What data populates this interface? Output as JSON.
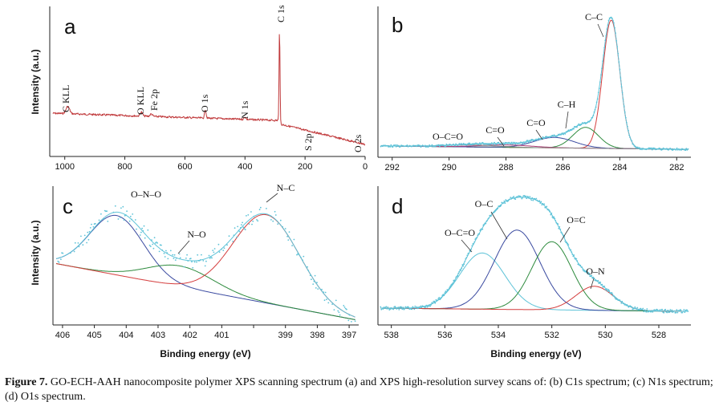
{
  "chart_data": [
    {
      "panel": "a",
      "type": "line",
      "ylabel": "Intensity (a.u.)",
      "xlim": [
        1050,
        0
      ],
      "xticks": [
        1000,
        800,
        600,
        400,
        200,
        0
      ],
      "color": "#c0393b",
      "peaks": [
        {
          "label": "C KLL",
          "x": 990
        },
        {
          "label": "O KLL",
          "x": 745
        },
        {
          "label": "Fe 2p",
          "x": 710
        },
        {
          "label": "O 1s",
          "x": 532
        },
        {
          "label": "N 1s",
          "x": 400
        },
        {
          "label": "C 1s",
          "x": 285
        },
        {
          "label": "S 2p",
          "x": 165
        },
        {
          "label": "O 2s",
          "x": 23
        }
      ]
    },
    {
      "panel": "b",
      "type": "line",
      "xlim": [
        292.5,
        281.5
      ],
      "xticks": [
        292,
        290,
        288,
        286,
        284,
        282
      ],
      "components": [
        {
          "label": "C–C",
          "center": 284.3,
          "color": "#d43c3c"
        },
        {
          "label": "C–H",
          "center": 285.2,
          "color": "#2e8b3e"
        },
        {
          "label": "C=O",
          "center": 286.3,
          "color": "#3a4aa0"
        },
        {
          "label": "C=O",
          "center": 288.0,
          "color": "#b0407a"
        },
        {
          "label": "O–C=O",
          "center": 289.2,
          "color": "#888888"
        }
      ],
      "envelope_color": "#5fc3d8"
    },
    {
      "panel": "c",
      "type": "line",
      "ylabel": "Intensity (a.u.)",
      "xlabel": "Binding energy (eV)",
      "xlim": [
        406.3,
        396.7
      ],
      "xticks": [
        406,
        405,
        404,
        403,
        402,
        401,
        400,
        399,
        398,
        397
      ],
      "xtick_labels": [
        "406",
        "405",
        "404",
        "403",
        "402",
        "401",
        "",
        "399",
        "398",
        "397"
      ],
      "components": [
        {
          "label": "O–N–O",
          "center": 404.3,
          "color": "#3a4aa0"
        },
        {
          "label": "N–O",
          "center": 402.3,
          "color": "#2e8b3e"
        },
        {
          "label": "N–C",
          "center": 399.6,
          "color": "#d43c3c"
        }
      ],
      "envelope_color": "#5fc3d8"
    },
    {
      "panel": "d",
      "type": "line",
      "xlabel": "Binding energy (eV)",
      "xlim": [
        538.5,
        526.8
      ],
      "xticks": [
        538,
        536,
        534,
        532,
        530,
        528
      ],
      "components": [
        {
          "label": "O–C=O",
          "center": 534.6,
          "color": "#5fc3d8"
        },
        {
          "label": "O–C",
          "center": 533.3,
          "color": "#3a4aa0"
        },
        {
          "label": "O=C",
          "center": 532.0,
          "color": "#2e8b3e"
        },
        {
          "label": "O–N",
          "center": 530.4,
          "color": "#d43c3c"
        }
      ],
      "envelope_color": "#5fc3d8"
    }
  ],
  "caption": {
    "figure_label": "Figure 7.",
    "text": " GO-ECH-AAH nanocomposite polymer XPS scanning spectrum (a) and XPS high-resolution survey scans of: (b) C1s spectrum; (c) N1s spectrum; (d) O1s spectrum."
  }
}
